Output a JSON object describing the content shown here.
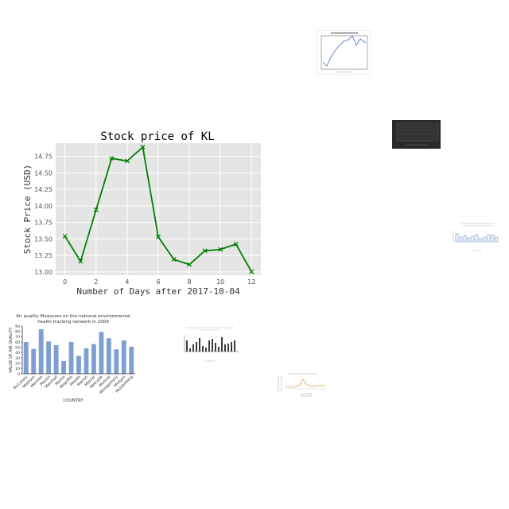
{
  "chart_data": [
    {
      "type": "line",
      "title": "Stock price of KL",
      "xlabel": "Number of Days after 2017-10-04",
      "ylabel": "Stock Price (USD)",
      "x": [
        0,
        1,
        2,
        3,
        4,
        5,
        6,
        7,
        8,
        9,
        10,
        11,
        12
      ],
      "values": [
        13.54,
        13.16,
        13.94,
        14.72,
        14.68,
        14.89,
        13.53,
        13.19,
        13.11,
        13.32,
        13.34,
        13.42,
        13.0
      ],
      "xlim": [
        -0.6,
        12.6
      ],
      "ylim": [
        12.95,
        14.95
      ],
      "x_ticks": [
        "0",
        "2",
        "4",
        "6",
        "8",
        "10",
        "12"
      ],
      "y_ticks": [
        "13.00",
        "13.25",
        "13.50",
        "13.75",
        "14.00",
        "14.25",
        "14.50",
        "14.75"
      ],
      "grid": true,
      "color": "#008000",
      "background": "#e5e5e5"
    },
    {
      "type": "bar",
      "title": "Air quality Measures on the national environmental health tracking network in 2009",
      "xlabel": "COUNTRY",
      "ylabel": "VALUE OF AIR QUALITY",
      "categories": [
        "McCreary",
        "Madison",
        "Menifee",
        "Mason",
        "Marshall",
        "Martin",
        "Magoffin",
        "Meade",
        "Marion",
        "Mercer",
        "Metcalfe",
        "Monroe",
        "Montgomery",
        "Morgan",
        "Muhlenberg"
      ],
      "values": [
        60,
        47,
        84,
        61,
        54,
        24,
        60,
        34,
        48,
        56,
        79,
        67,
        46,
        63,
        51
      ],
      "ylim": [
        0,
        90
      ],
      "y_ticks": [
        "0",
        "10",
        "20",
        "30",
        "40",
        "50",
        "60",
        "70",
        "80",
        "90"
      ],
      "grid": false,
      "color": "#7f9fd2"
    }
  ]
}
